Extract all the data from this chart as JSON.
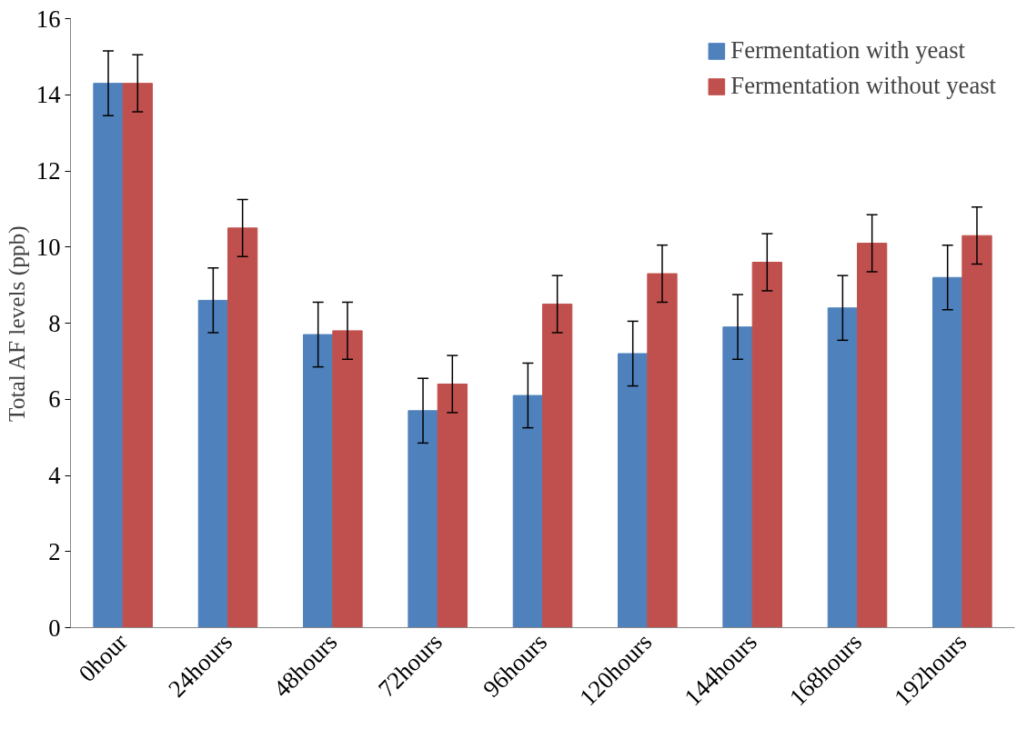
{
  "chart_data": {
    "type": "bar",
    "ylabel": "Total AF levels (ppb)",
    "categories": [
      "0hour",
      "24hours",
      "48hours",
      "72hours",
      "96hours",
      "120hours",
      "144hours",
      "168hours",
      "192hours"
    ],
    "series": [
      {
        "name": "Fermentation with yeast",
        "color": "#4f81bd",
        "values": [
          14.3,
          8.6,
          7.7,
          5.7,
          6.1,
          7.2,
          7.9,
          8.4,
          9.2
        ],
        "errors": [
          0.85,
          0.85,
          0.85,
          0.85,
          0.85,
          0.85,
          0.85,
          0.85,
          0.85
        ]
      },
      {
        "name": "Fermentation without yeast",
        "color": "#c0504d",
        "values": [
          14.3,
          10.5,
          7.8,
          6.4,
          8.5,
          9.3,
          9.6,
          10.1,
          10.3
        ],
        "errors": [
          0.75,
          0.75,
          0.75,
          0.75,
          0.75,
          0.75,
          0.75,
          0.75,
          0.75
        ]
      }
    ],
    "ylim": [
      0,
      16
    ],
    "yticks": [
      0,
      2,
      4,
      6,
      8,
      10,
      12,
      14,
      16
    ],
    "grid": false,
    "legend": "top right"
  }
}
